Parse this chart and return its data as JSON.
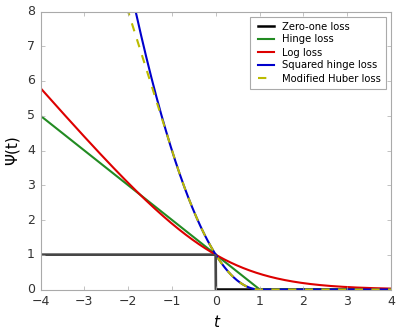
{
  "title": "",
  "xlabel": "t",
  "ylabel": "Ψ(t)",
  "xlim": [
    -4,
    4
  ],
  "ylim": [
    0,
    8
  ],
  "xticks": [
    -4,
    -3,
    -2,
    -1,
    0,
    1,
    2,
    3,
    4
  ],
  "yticks": [
    0,
    1,
    2,
    3,
    4,
    5,
    6,
    7,
    8
  ],
  "legend_entries": [
    {
      "label": "Zero-one loss",
      "color": "#000000",
      "linestyle": "-",
      "linewidth": 1.8
    },
    {
      "label": "Hinge loss",
      "color": "#228B22",
      "linestyle": "-",
      "linewidth": 1.5
    },
    {
      "label": "Log loss",
      "color": "#dd0000",
      "linestyle": "-",
      "linewidth": 1.5
    },
    {
      "label": "Squared hinge loss",
      "color": "#0000cc",
      "linestyle": "-",
      "linewidth": 1.5
    },
    {
      "label": "Modified Huber loss",
      "color": "#bbbb00",
      "linestyle": "--",
      "linewidth": 1.5
    }
  ],
  "vline_color": "#555555",
  "vline_linewidth": 1.2,
  "spine_color": "#aaaaaa",
  "bg_color": "#ffffff",
  "figsize": [
    4.0,
    3.35
  ],
  "dpi": 100
}
